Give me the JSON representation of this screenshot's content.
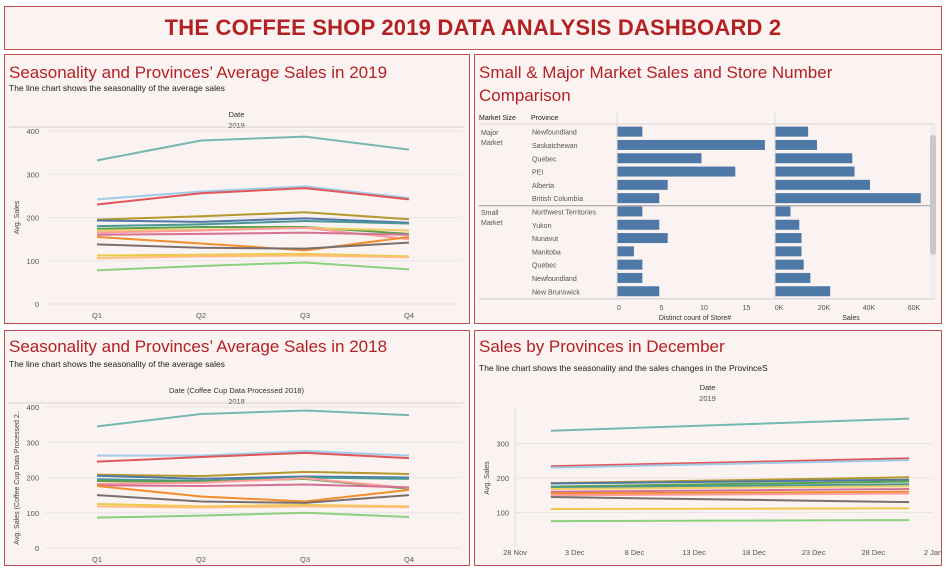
{
  "header": {
    "title": "THE COFFEE SHOP 2019 DATA ANALYSIS DASHBOARD 2"
  },
  "panels": {
    "tl": {
      "title": "Seasonality and Provinces’ Average Sales in 2019",
      "subtitle": "The line chart shows the seasonality of the average sales"
    },
    "tr": {
      "title": "Small & Major Market Sales and Store Number Comparison"
    },
    "bl": {
      "title": "Seasonality and Provinces’ Average Sales in 2018",
      "subtitle": "The line chart shows the seasonality of the average sales"
    },
    "br": {
      "title": "Sales by Provinces in December",
      "subtitle": "The line chart shows the seasonality and the sales changes in the ProvinceS"
    }
  },
  "chart_data": [
    {
      "id": "avg2019",
      "type": "line",
      "title": "Seasonality and Provinces’ Average Sales in 2019",
      "header": "Date",
      "header_sub": "2019",
      "ylabel": "Avg. Sales",
      "ylim": [
        0,
        400
      ],
      "yticks": [
        0,
        100,
        200,
        300,
        400
      ],
      "categories": [
        "Q1",
        "Q2",
        "Q3",
        "Q4"
      ],
      "grid": true,
      "series": [
        {
          "color": "#76b7b2",
          "values": [
            332,
            378,
            387,
            357
          ]
        },
        {
          "color": "#a0cbe8",
          "values": [
            242,
            260,
            272,
            245
          ]
        },
        {
          "color": "#e15759",
          "values": [
            230,
            256,
            268,
            242
          ]
        },
        {
          "color": "#b6992d",
          "values": [
            195,
            203,
            212,
            196
          ]
        },
        {
          "color": "#4e79a7",
          "values": [
            193,
            190,
            198,
            188
          ]
        },
        {
          "color": "#499894",
          "values": [
            180,
            184,
            192,
            186
          ]
        },
        {
          "color": "#59a14f",
          "values": [
            174,
            178,
            178,
            162
          ]
        },
        {
          "color": "#f1ce63",
          "values": [
            170,
            172,
            176,
            170
          ]
        },
        {
          "color": "#ff9d9a",
          "values": [
            165,
            170,
            176,
            150
          ]
        },
        {
          "color": "#d37295",
          "values": [
            160,
            162,
            165,
            160
          ]
        },
        {
          "color": "#f28e2b",
          "values": [
            155,
            140,
            124,
            155
          ]
        },
        {
          "color": "#79706e",
          "values": [
            138,
            130,
            128,
            142
          ]
        },
        {
          "color": "#edc948",
          "values": [
            112,
            114,
            116,
            110
          ]
        },
        {
          "color": "#ffbe7d",
          "values": [
            106,
            110,
            112,
            108
          ]
        },
        {
          "color": "#8cd17d",
          "values": [
            78,
            88,
            96,
            80
          ]
        }
      ]
    },
    {
      "id": "avg2018",
      "type": "line",
      "title": "Seasonality and Provinces’ Average Sales in 2018",
      "header": "Date (Coffee Cup Data Processed 2018)",
      "header_sub": "2018",
      "ylabel": "Avg. Sales (Coffee Cup Data Processed 2..",
      "ylim": [
        0,
        400
      ],
      "yticks": [
        0,
        100,
        200,
        300,
        400
      ],
      "categories": [
        "Q1",
        "Q2",
        "Q3",
        "Q4"
      ],
      "grid": true,
      "series": [
        {
          "color": "#76b7b2",
          "values": [
            345,
            380,
            390,
            377
          ]
        },
        {
          "color": "#a0cbe8",
          "values": [
            262,
            262,
            275,
            262
          ]
        },
        {
          "color": "#e15759",
          "values": [
            245,
            258,
            270,
            255
          ]
        },
        {
          "color": "#b6992d",
          "values": [
            208,
            204,
            216,
            210
          ]
        },
        {
          "color": "#4e79a7",
          "values": [
            205,
            196,
            203,
            200
          ]
        },
        {
          "color": "#499894",
          "values": [
            195,
            190,
            200,
            196
          ]
        },
        {
          "color": "#59a14f",
          "values": [
            190,
            188,
            196,
            168
          ]
        },
        {
          "color": "#ff9d9a",
          "values": [
            182,
            185,
            198,
            170
          ]
        },
        {
          "color": "#d37295",
          "values": [
            178,
            176,
            180,
            172
          ]
        },
        {
          "color": "#f28e2b",
          "values": [
            176,
            146,
            132,
            165
          ]
        },
        {
          "color": "#79706e",
          "values": [
            150,
            132,
            128,
            150
          ]
        },
        {
          "color": "#edc948",
          "values": [
            125,
            118,
            122,
            118
          ]
        },
        {
          "color": "#ffbe7d",
          "values": [
            118,
            115,
            118,
            116
          ]
        },
        {
          "color": "#8cd17d",
          "values": [
            86,
            92,
            100,
            88
          ]
        }
      ]
    },
    {
      "id": "market",
      "type": "bar",
      "title": "Small & Major Market Sales and Store Number Comparison",
      "columns": [
        "Market Size",
        "Province"
      ],
      "groups": [
        {
          "name": [
            "Major",
            "Market"
          ],
          "rows": [
            {
              "province": "Newfoundland",
              "stores": 3,
              "sales": 15000
            },
            {
              "province": "Saskatchewan",
              "stores": 17.5,
              "sales": 19000
            },
            {
              "province": "Quebec",
              "stores": 10,
              "sales": 35000
            },
            {
              "province": "PEI",
              "stores": 14,
              "sales": 36000
            },
            {
              "province": "Alberta",
              "stores": 6,
              "sales": 43000
            },
            {
              "province": "British Columbia",
              "stores": 5,
              "sales": 66000
            }
          ]
        },
        {
          "name": [
            "Small",
            "Market"
          ],
          "rows": [
            {
              "province": "Northwest Territories",
              "stores": 3,
              "sales": 7000
            },
            {
              "province": "Yukon",
              "stores": 5,
              "sales": 11000
            },
            {
              "province": "Nunavut",
              "stores": 6,
              "sales": 12000
            },
            {
              "province": "Manitoba",
              "stores": 2,
              "sales": 12000
            },
            {
              "province": "Quebec",
              "stores": 3,
              "sales": 13000
            },
            {
              "province": "Newfoundland",
              "stores": 3,
              "sales": 16000
            },
            {
              "province": "New Brunswick",
              "stores": 5,
              "sales": 25000
            }
          ]
        }
      ],
      "stores_axis": {
        "label": "Distinct count of Store#",
        "ticks": [
          "0",
          "5",
          "10",
          "15"
        ],
        "max": 18
      },
      "sales_axis": {
        "label": "Sales",
        "ticks": [
          "0K",
          "20K",
          "40K",
          "60K"
        ],
        "max": 67000
      },
      "bar_color": "#4e79a7"
    },
    {
      "id": "dec",
      "type": "line",
      "title": "Sales by Provinces in December",
      "header": "Date",
      "header_sub": "2019",
      "ylabel": "Avg. Sales",
      "ylim": [
        0,
        400
      ],
      "yticks": [
        100,
        200,
        300
      ],
      "x_ticks": [
        "28 Nov",
        "3 Dec",
        "8 Dec",
        "13 Dec",
        "18 Dec",
        "23 Dec",
        "28 Dec",
        "2 Jan"
      ],
      "x_range": [
        "2019-11-28",
        "2020-01-02"
      ],
      "x_data": [
        "2019-12-01",
        "2019-12-31"
      ],
      "grid": true,
      "series": [
        {
          "color": "#76b7b2",
          "values": [
            337,
            372
          ]
        },
        {
          "color": "#e15759",
          "values": [
            234,
            257
          ]
        },
        {
          "color": "#a0cbe8",
          "values": [
            230,
            252
          ]
        },
        {
          "color": "#b6992d",
          "values": [
            185,
            202
          ]
        },
        {
          "color": "#4e79a7",
          "values": [
            184,
            195
          ]
        },
        {
          "color": "#59a14f",
          "values": [
            175,
            190
          ]
        },
        {
          "color": "#499894",
          "values": [
            172,
            182
          ]
        },
        {
          "color": "#f1ce63",
          "values": [
            168,
            176
          ]
        },
        {
          "color": "#d37295",
          "values": [
            160,
            168
          ]
        },
        {
          "color": "#f28e2b",
          "values": [
            155,
            160
          ]
        },
        {
          "color": "#ff9d9a",
          "values": [
            150,
            155
          ]
        },
        {
          "color": "#79706e",
          "values": [
            145,
            130
          ]
        },
        {
          "color": "#edc948",
          "values": [
            110,
            112
          ]
        },
        {
          "color": "#8cd17d",
          "values": [
            75,
            78
          ]
        }
      ]
    }
  ]
}
